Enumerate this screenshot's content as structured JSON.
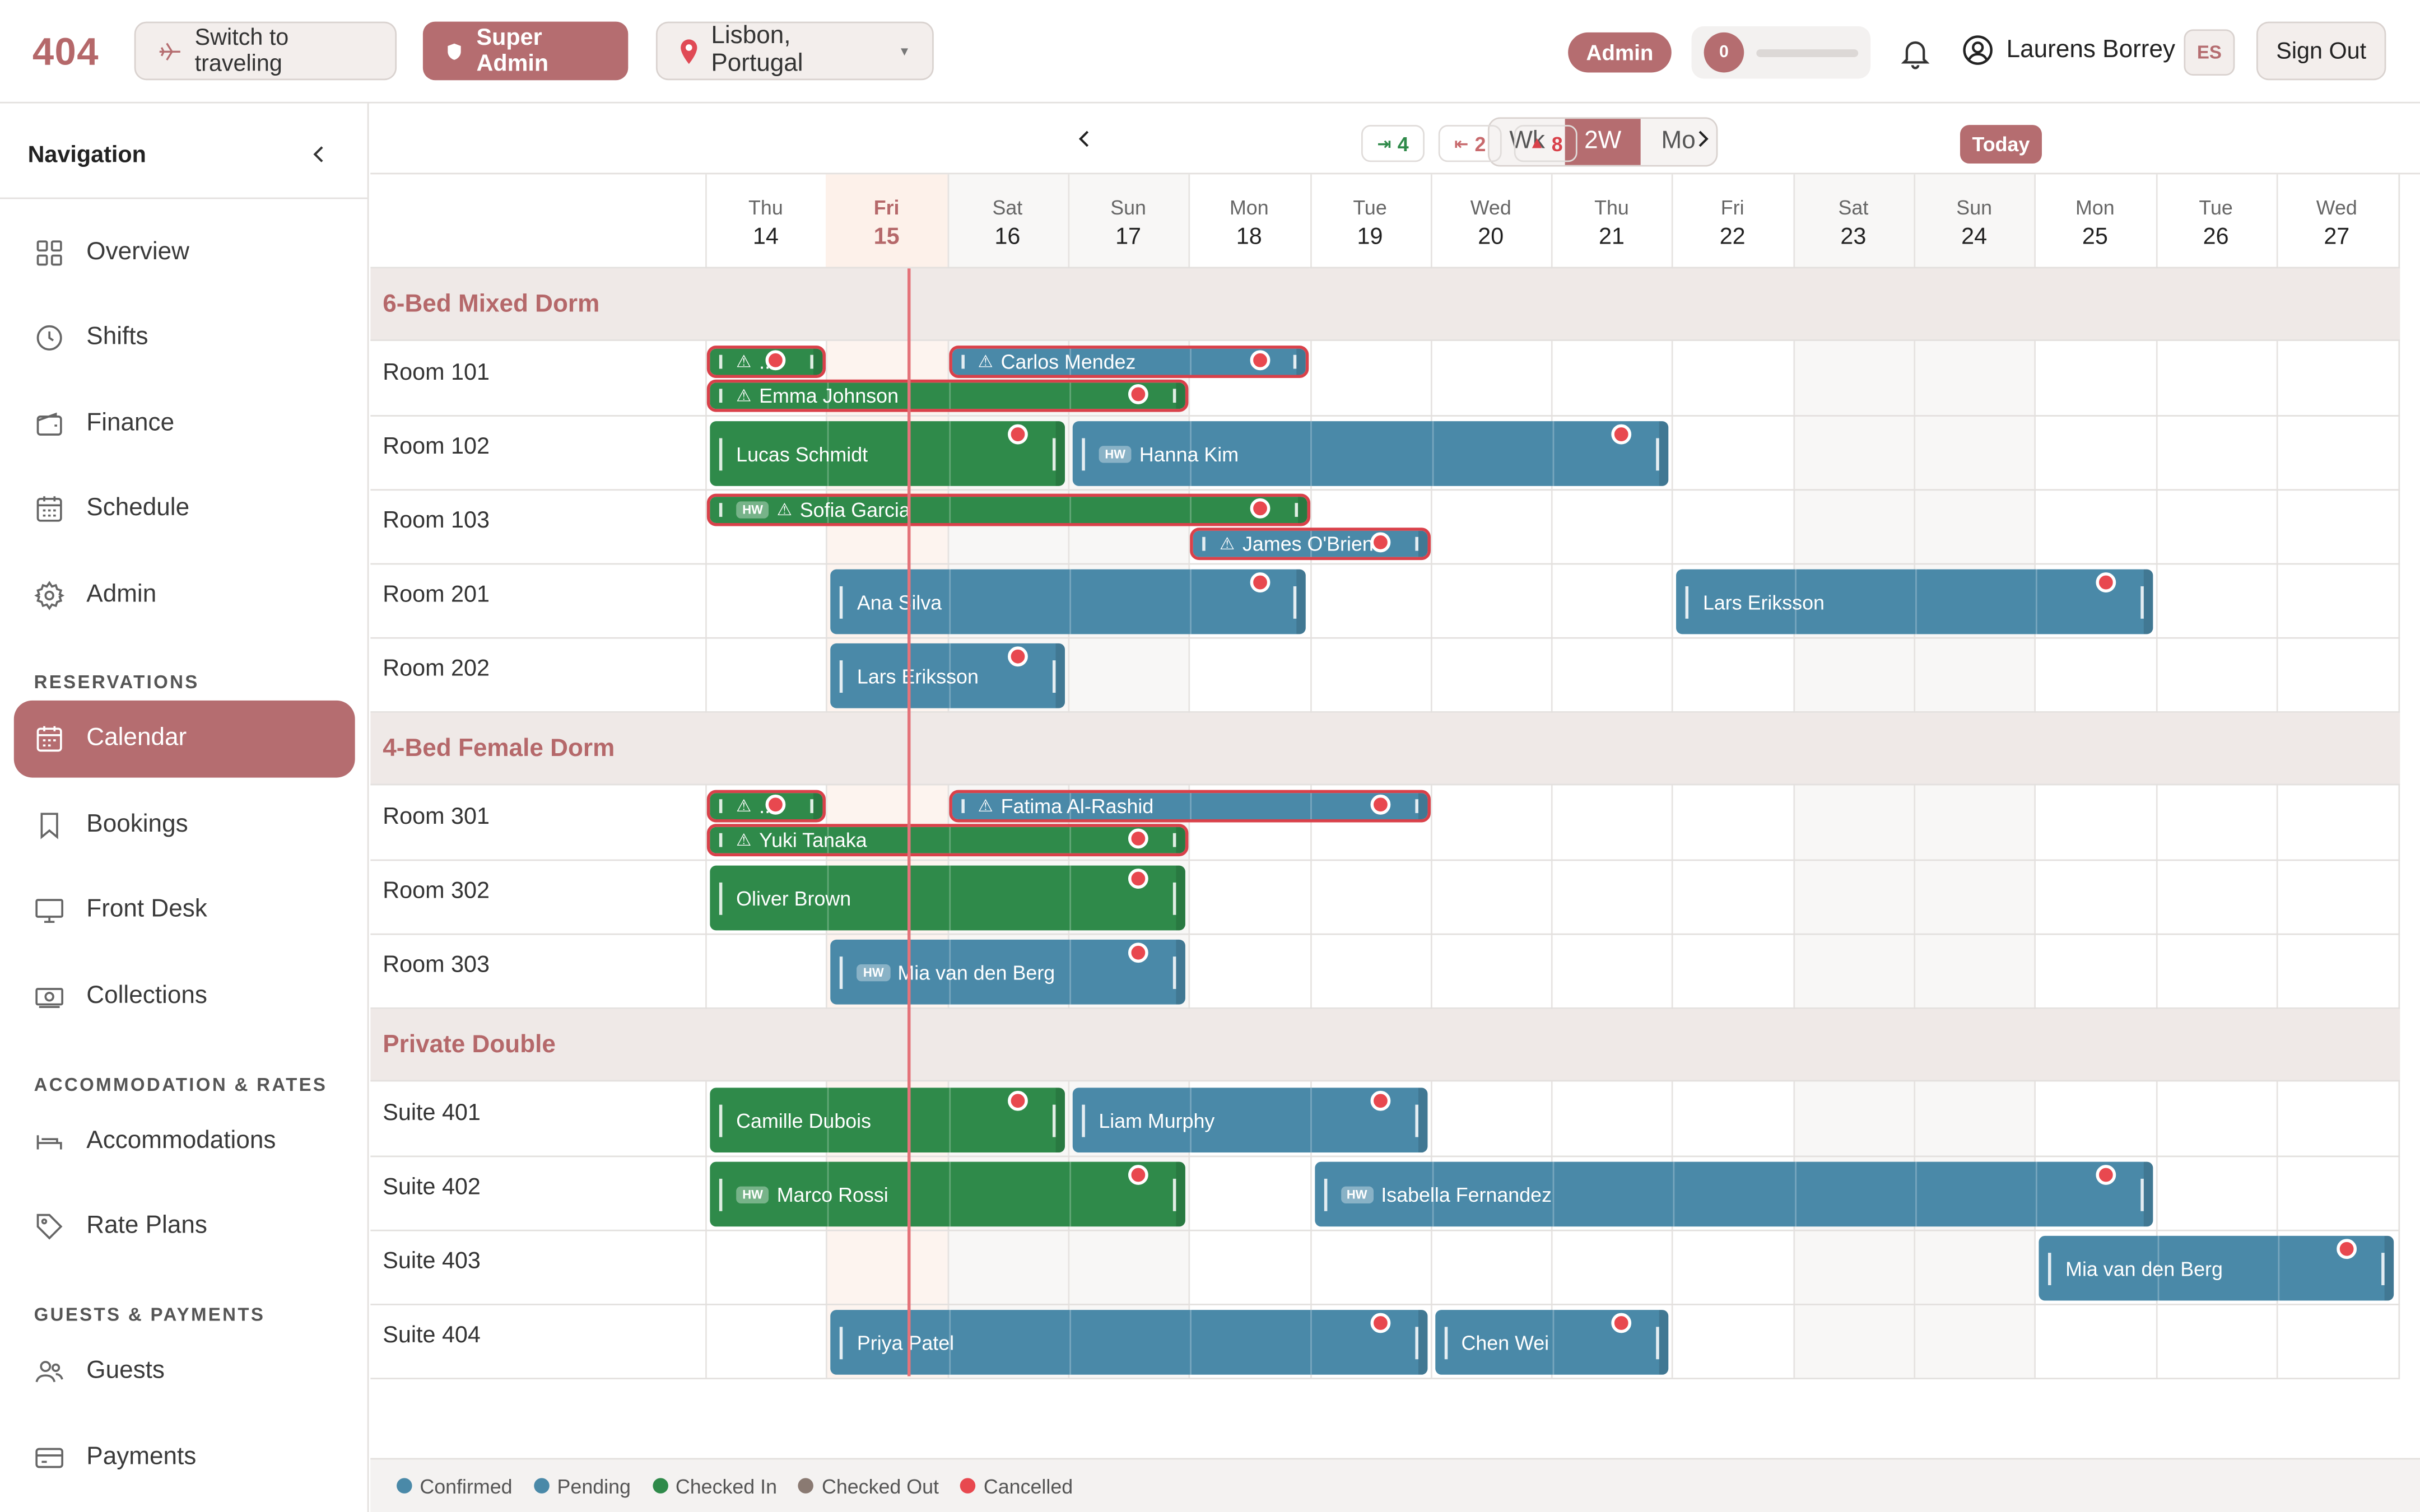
{
  "header": {
    "logo": "404",
    "travel_button": "Switch to traveling",
    "role_button": "Super Admin",
    "location": "Lisbon, Portugal",
    "admin_pill": "Admin",
    "progress_count": "0",
    "progress_fraction": 0,
    "user_name": "Laurens Borrey",
    "language": "ES",
    "sign_out": "Sign Out"
  },
  "sidebar": {
    "title": "Navigation",
    "items": [
      "Overview",
      "Shifts",
      "Finance",
      "Schedule",
      "Admin"
    ],
    "sections": [
      "RESERVATIONS",
      "ACCOMMODATION & RATES",
      "GUESTS & PAYMENTS"
    ],
    "reservations": [
      "Calendar",
      "Bookings",
      "Front Desk",
      "Collections"
    ],
    "accommodation": [
      "Accommodations",
      "Rate Plans"
    ],
    "guests": [
      "Guests",
      "Payments"
    ],
    "active": "Calendar"
  },
  "toolbar": {
    "views": [
      "Wk",
      "2W",
      "Mo"
    ],
    "active_view": "2W",
    "arrivals": "4",
    "departures": "2",
    "alerts": "8",
    "today": "Today"
  },
  "days": [
    {
      "name": "Thu",
      "num": "14"
    },
    {
      "name": "Fri",
      "num": "15",
      "today": true
    },
    {
      "name": "Sat",
      "num": "16"
    },
    {
      "name": "Sun",
      "num": "17"
    },
    {
      "name": "Mon",
      "num": "18"
    },
    {
      "name": "Tue",
      "num": "19"
    },
    {
      "name": "Wed",
      "num": "20"
    },
    {
      "name": "Thu",
      "num": "21"
    },
    {
      "name": "Fri",
      "num": "22"
    },
    {
      "name": "Sat",
      "num": "23"
    },
    {
      "name": "Sun",
      "num": "24"
    },
    {
      "name": "Mon",
      "num": "25"
    },
    {
      "name": "Tue",
      "num": "26"
    },
    {
      "name": "Wed",
      "num": "27"
    }
  ],
  "groups": [
    {
      "name": "6-Bed Mixed Dorm",
      "rooms": [
        "Room 101",
        "Room 102",
        "Room 103",
        "Room 201",
        "Room 202"
      ]
    },
    {
      "name": "4-Bed Female Dorm",
      "rooms": [
        "Room 301",
        "Room 302",
        "Room 303"
      ]
    },
    {
      "name": "Private Double",
      "rooms": [
        "Suite 401",
        "Suite 402",
        "Suite 403",
        "Suite 404"
      ]
    }
  ],
  "bookings": [
    {
      "room": "Room 101",
      "name": "...",
      "status": "checked-in",
      "start": 0,
      "end": 1,
      "lane": 0,
      "warn": true
    },
    {
      "room": "Room 101",
      "name": "Carlos Mendez",
      "status": "pending",
      "start": 2,
      "end": 5,
      "lane": 0,
      "warn": true
    },
    {
      "room": "Room 101",
      "name": "Emma Johnson",
      "status": "checked-in",
      "start": 0,
      "end": 4,
      "lane": 1,
      "warn": true
    },
    {
      "room": "Room 102",
      "name": "Lucas Schmidt",
      "status": "checked-in",
      "start": 0,
      "end": 3
    },
    {
      "room": "Room 102",
      "name": "Hanna Kim",
      "status": "pending",
      "start": 3,
      "end": 8,
      "hw": true
    },
    {
      "room": "Room 103",
      "name": "Sofia Garcia",
      "status": "checked-in",
      "start": 0,
      "end": 5,
      "lane": 0,
      "warn": true,
      "hw": true
    },
    {
      "room": "Room 103",
      "name": "James O'Brien",
      "status": "pending",
      "start": 4,
      "end": 6,
      "lane": 1,
      "warn": true
    },
    {
      "room": "Room 201",
      "name": "Ana Silva",
      "status": "pending",
      "start": 1,
      "end": 5
    },
    {
      "room": "Room 201",
      "name": "Lars Eriksson",
      "status": "pending",
      "start": 8,
      "end": 12
    },
    {
      "room": "Room 202",
      "name": "Lars Eriksson",
      "status": "pending",
      "start": 1,
      "end": 3
    },
    {
      "room": "Room 301",
      "name": "...",
      "status": "checked-in",
      "start": 0,
      "end": 1,
      "lane": 0,
      "warn": true
    },
    {
      "room": "Room 301",
      "name": "Fatima Al-Rashid",
      "status": "pending",
      "start": 2,
      "end": 6,
      "lane": 0,
      "warn": true
    },
    {
      "room": "Room 301",
      "name": "Yuki Tanaka",
      "status": "checked-in",
      "start": 0,
      "end": 4,
      "lane": 1,
      "warn": true
    },
    {
      "room": "Room 302",
      "name": "Oliver Brown",
      "status": "checked-in",
      "start": 0,
      "end": 4
    },
    {
      "room": "Room 303",
      "name": "Mia van den Berg",
      "status": "pending",
      "start": 1,
      "end": 4,
      "hw": true
    },
    {
      "room": "Suite 401",
      "name": "Camille Dubois",
      "status": "checked-in",
      "start": 0,
      "end": 3
    },
    {
      "room": "Suite 401",
      "name": "Liam Murphy",
      "status": "pending",
      "start": 3,
      "end": 6
    },
    {
      "room": "Suite 402",
      "name": "Marco Rossi",
      "status": "checked-in",
      "start": 0,
      "end": 4,
      "hw": true
    },
    {
      "room": "Suite 402",
      "name": "Isabella Fernandez",
      "status": "pending",
      "start": 5,
      "end": 12,
      "hw": true
    },
    {
      "room": "Suite 403",
      "name": "Mia van den Berg",
      "status": "pending",
      "start": 11,
      "end": 14
    },
    {
      "room": "Suite 404",
      "name": "Priya Patel",
      "status": "pending",
      "start": 1,
      "end": 6
    },
    {
      "room": "Suite 404",
      "name": "Chen Wei",
      "status": "pending",
      "start": 6,
      "end": 8
    }
  ],
  "hw_tag": "HW",
  "legend": [
    {
      "label": "Confirmed",
      "color": "#4a89a8"
    },
    {
      "label": "Pending",
      "color": "#4a89a8"
    },
    {
      "label": "Checked In",
      "color": "#2f8a4a"
    },
    {
      "label": "Checked Out",
      "color": "#8a7a72"
    },
    {
      "label": "Cancelled",
      "color": "#e8484f"
    }
  ],
  "colors": {
    "accent": "#b56d70",
    "checked_in": "#2f8a4a",
    "pending": "#4a89a8",
    "alert": "#d9414a"
  }
}
